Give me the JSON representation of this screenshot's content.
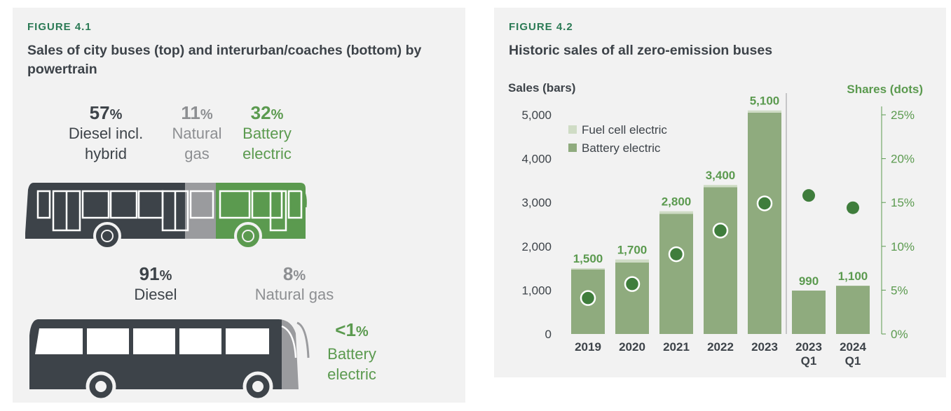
{
  "figure1": {
    "label": "FIGURE 4.1",
    "title": "Sales of city buses (top) and interurban/coaches (bottom) by powertrain",
    "city": [
      {
        "pct": "57",
        "desc": "Diesel incl.\nhybrid",
        "share": 57
      },
      {
        "pct": "11",
        "desc": "Natural\ngas",
        "share": 11
      },
      {
        "pct": "32",
        "desc": "Battery\nelectric",
        "share": 32
      }
    ],
    "coach": [
      {
        "pct": "91",
        "desc": "Diesel",
        "share": 91
      },
      {
        "pct": "8",
        "desc": "Natural gas",
        "share": 8
      },
      {
        "pct": "<1",
        "desc": "Battery\nelectric",
        "share": 1
      }
    ],
    "colors": {
      "diesel": "#3d4349",
      "gas": "#9a9b9e",
      "battery": "#5b9a4f"
    }
  },
  "chart_data": {
    "type": "bar",
    "label": "FIGURE 4.2",
    "title": "Historic sales of all zero-emission buses",
    "ylabel": "Sales (bars)",
    "y2label": "Shares (dots)",
    "categories": [
      "2019",
      "2020",
      "2021",
      "2022",
      "2023",
      "2023 Q1",
      "2024 Q1"
    ],
    "category_lines": [
      [
        "2019"
      ],
      [
        "2020"
      ],
      [
        "2021"
      ],
      [
        "2022"
      ],
      [
        "2023"
      ],
      [
        "2023",
        "Q1"
      ],
      [
        "2024",
        "Q1"
      ]
    ],
    "series": [
      {
        "name": "Battery electric",
        "color": "#8fab7e",
        "values": [
          1470,
          1630,
          2740,
          3350,
          5050,
          990,
          1100
        ]
      },
      {
        "name": "Fuel cell electric",
        "color": "#cfdcc5",
        "values": [
          30,
          70,
          60,
          50,
          50,
          0,
          0
        ]
      }
    ],
    "totals": [
      1500,
      1700,
      2800,
      3400,
      5100,
      990,
      1100
    ],
    "total_labels": [
      "1,500",
      "1,700",
      "2,800",
      "3,400",
      "5,100",
      "990",
      "1,100"
    ],
    "shares": [
      4.1,
      5.7,
      9.1,
      11.8,
      14.9,
      15.8,
      14.4
    ],
    "shares_on_bar": [
      true,
      true,
      true,
      true,
      true,
      false,
      false
    ],
    "ylim": [
      0,
      5000
    ],
    "yticks": [
      0,
      1000,
      2000,
      3000,
      4000,
      5000
    ],
    "ytick_labels": [
      "0",
      "1,000",
      "2,000",
      "3,000",
      "4,000",
      "5,000"
    ],
    "y2lim": [
      0,
      25
    ],
    "y2ticks": [
      0,
      5,
      10,
      15,
      20,
      25
    ],
    "y2tick_labels": [
      "0%",
      "5%",
      "10%",
      "15%",
      "20%",
      "25%"
    ],
    "legend_position": "top-left",
    "grid": false,
    "colors": {
      "label": "#5b9a4f",
      "dot": "#3f7d3c",
      "text": "#3d4349",
      "axis": "#555555"
    }
  }
}
